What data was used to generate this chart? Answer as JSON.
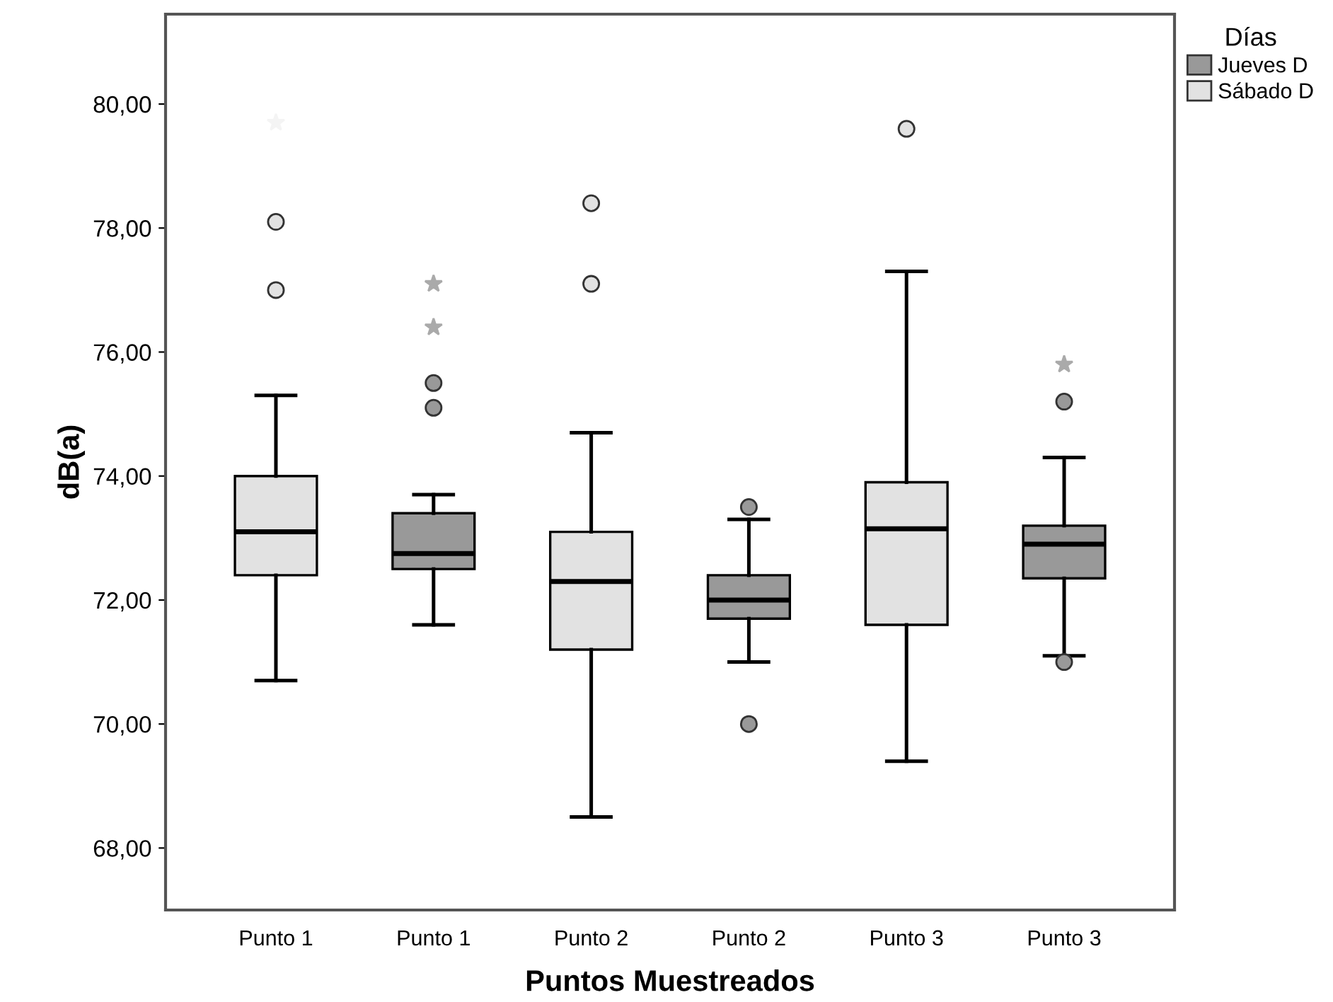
{
  "chart_data": {
    "type": "box",
    "xlabel": "Puntos Muestreados",
    "ylabel": "dB(a)",
    "legend_title": "Días",
    "legend": "top right",
    "grid": false,
    "categories": [
      "Punto 1",
      "Punto 1",
      "Punto 2",
      "Punto 2",
      "Punto 3",
      "Punto 3"
    ],
    "ylim": [
      67,
      81.45
    ],
    "yticks": [
      {
        "value": 68,
        "label": "68,00"
      },
      {
        "value": 70,
        "label": "70,00"
      },
      {
        "value": 72,
        "label": "72,00"
      },
      {
        "value": 74,
        "label": "74,00"
      },
      {
        "value": 76,
        "label": "76,00"
      },
      {
        "value": 78,
        "label": "78,00"
      },
      {
        "value": 80,
        "label": "80,00"
      }
    ],
    "series": [
      {
        "name": "Jueves D",
        "color": "#999999",
        "boxes": [
          null,
          {
            "low": 71.6,
            "q1": 72.5,
            "median": 72.75,
            "q3": 73.4,
            "high": 73.7,
            "outliers": [
              75.5,
              75.1,
              77.1,
              76.4
            ]
          },
          null,
          {
            "low": 71.0,
            "q1": 71.7,
            "median": 72.0,
            "q3": 72.4,
            "high": 73.3,
            "outliers": [
              73.5,
              70.0
            ]
          },
          null,
          {
            "low": 71.1,
            "q1": 72.35,
            "median": 72.9,
            "q3": 73.2,
            "high": 74.3,
            "outliers": [
              75.8,
              75.2,
              71.0
            ]
          }
        ]
      },
      {
        "name": "Sábado D",
        "color": "#e2e2e2",
        "boxes": [
          {
            "low": 70.7,
            "q1": 72.4,
            "median": 73.1,
            "q3": 74.0,
            "high": 75.3,
            "outliers": [
              79.7,
              78.1,
              77.0
            ]
          },
          null,
          {
            "low": 68.5,
            "q1": 71.2,
            "median": 72.3,
            "q3": 73.1,
            "high": 74.7,
            "outliers": [
              78.4,
              77.1
            ]
          },
          null,
          {
            "low": 69.4,
            "q1": 71.6,
            "median": 73.15,
            "q3": 73.9,
            "high": 77.3,
            "outliers": [
              79.6
            ]
          },
          null
        ]
      }
    ]
  }
}
